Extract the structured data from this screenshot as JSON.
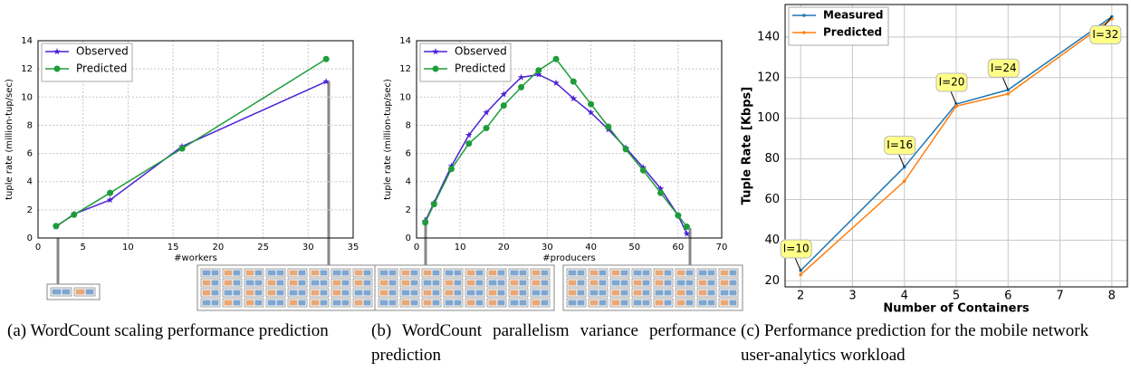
{
  "chart_data": [
    {
      "type": "line",
      "xlabel": "#workers",
      "ylabel": "tuple rate (million-tup/sec)",
      "x": [
        2,
        4,
        8,
        16,
        32
      ],
      "xlim": [
        0,
        35
      ],
      "xticks": [
        0,
        5,
        10,
        15,
        20,
        25,
        30,
        35
      ],
      "ylim": [
        0,
        14
      ],
      "yticks": [
        0,
        2,
        4,
        6,
        8,
        10,
        12,
        14
      ],
      "grid": true,
      "legend": "upper left",
      "series": [
        {
          "name": "Observed",
          "color": "#4b22d6",
          "marker": "star",
          "values": [
            0.8,
            1.7,
            2.7,
            6.5,
            11.1
          ]
        },
        {
          "name": "Predicted",
          "color": "#1e9c3a",
          "marker": "circle",
          "values": [
            0.85,
            1.65,
            3.2,
            6.35,
            12.7
          ]
        }
      ],
      "caption": "(a) WordCount scaling performance prediction"
    },
    {
      "type": "line",
      "xlabel": "#producers",
      "ylabel": "tuple rate (million-tup/sec)",
      "x": [
        2,
        4,
        8,
        12,
        16,
        20,
        24,
        28,
        32,
        36,
        40,
        44,
        48,
        52,
        56,
        60,
        62
      ],
      "xlim": [
        0,
        70
      ],
      "xticks": [
        0,
        10,
        20,
        30,
        40,
        50,
        60,
        70
      ],
      "ylim": [
        0,
        14
      ],
      "yticks": [
        0,
        2,
        4,
        6,
        8,
        10,
        12,
        14
      ],
      "grid": true,
      "legend": "upper left",
      "series": [
        {
          "name": "Observed",
          "color": "#4b22d6",
          "marker": "star",
          "values": [
            1.2,
            2.5,
            5.1,
            7.3,
            8.9,
            10.2,
            11.4,
            11.6,
            11.0,
            9.9,
            8.9,
            7.7,
            6.4,
            5.0,
            3.5,
            1.6,
            0.3
          ]
        },
        {
          "name": "Predicted",
          "color": "#1e9c3a",
          "marker": "circle",
          "values": [
            1.1,
            2.4,
            4.9,
            6.7,
            7.8,
            9.4,
            10.7,
            11.9,
            12.7,
            11.1,
            9.5,
            7.9,
            6.3,
            4.8,
            3.2,
            1.6,
            0.8
          ]
        }
      ],
      "caption": "(b) WordCount parallelism variance performance prediction"
    },
    {
      "type": "line",
      "xlabel": "Number of Containers",
      "ylabel": "Tuple Rate [Kbps]",
      "x": [
        2,
        4,
        5,
        6,
        8
      ],
      "xlim": [
        1.7,
        8.3
      ],
      "xticks": [
        2,
        3,
        4,
        5,
        6,
        7,
        8
      ],
      "ylim": [
        17,
        156
      ],
      "yticks": [
        20,
        40,
        60,
        80,
        100,
        120,
        140
      ],
      "grid": true,
      "legend": "upper left",
      "series": [
        {
          "name": "Measured",
          "color": "#1f77b4",
          "marker": "dot",
          "values": [
            25,
            76,
            107,
            114,
            150
          ]
        },
        {
          "name": "Predicted",
          "color": "#ff7f0e",
          "marker": "dot",
          "values": [
            23,
            69,
            106,
            112,
            149
          ]
        }
      ],
      "annotations": [
        "I=10",
        "I=16",
        "I=20",
        "I=24",
        "I=32"
      ],
      "caption": "(c) Performance prediction for the mobile network user-analytics workload"
    }
  ]
}
